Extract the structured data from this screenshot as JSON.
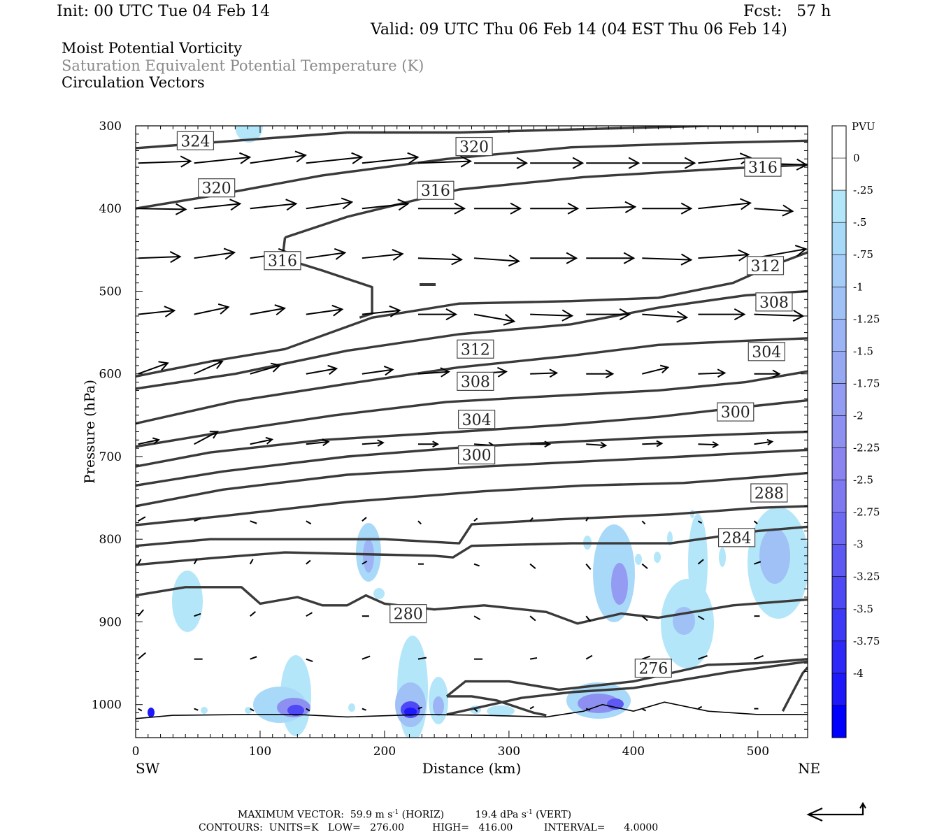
{
  "header": {
    "init": "Init: 00 UTC Tue 04 Feb 14",
    "fcst": "Fcst:   57 h",
    "valid": "Valid: 09 UTC Thu 06 Feb 14 (04 EST Thu 06 Feb 14)",
    "line1": "Moist Potential Vorticity",
    "line2": "Saturation Equivalent Potential Temperature (K)",
    "line3": "Circulation Vectors"
  },
  "footer": {
    "line1_a": "MAXIMUM VECTOR:  59.9 m s",
    "line1_b": " (HORIZ)          19.4 dPa s",
    "line1_c": " (VERT)",
    "sup": "-1",
    "line2": "CONTOURS:  UNITS=K   LOW=   276.00         HIGH=   416.00          INTERVAL=      4.0000"
  },
  "chart_data": {
    "type": "cross-section",
    "xlabel": "Distance (km)",
    "ylabel": "Pressure (hPa)",
    "x_ends": [
      "SW",
      "NE"
    ],
    "xlim": [
      0,
      540
    ],
    "ylim": [
      1040,
      300
    ],
    "x_ticks": [
      0,
      100,
      200,
      300,
      400,
      500
    ],
    "y_ticks": [
      300,
      400,
      500,
      600,
      700,
      800,
      900,
      1000
    ],
    "colorbar": {
      "title": "PVU",
      "labels": [
        "0",
        "-.25",
        "-.5",
        "-.75",
        "-1",
        "-1.25",
        "-1.5",
        "-1.75",
        "-2",
        "-2.25",
        "-2.5",
        "-2.75",
        "-3",
        "-3.25",
        "-3.5",
        "-3.75",
        "-4"
      ],
      "colors": [
        "#ffffff",
        "#ffffff",
        "#b4e6fa",
        "#a9d9f9",
        "#a5cdf7",
        "#a0c1f6",
        "#9cb4f5",
        "#97a8f3",
        "#939cf2",
        "#8e90f1",
        "#8a83f0",
        "#7e79f1",
        "#6e69f2",
        "#5e59f3",
        "#4e49f5",
        "#3e39f6",
        "#2e29f8",
        "#1e19fa",
        "#0000ff"
      ]
    },
    "contour_labels": [
      {
        "value": "324",
        "x": 48,
        "p": 318
      },
      {
        "value": "320",
        "x": 272,
        "p": 325
      },
      {
        "value": "316",
        "x": 504,
        "p": 350
      },
      {
        "value": "320",
        "x": 65,
        "p": 375
      },
      {
        "value": "316",
        "x": 241,
        "p": 378
      },
      {
        "value": "316",
        "x": 118,
        "p": 463
      },
      {
        "value": "312",
        "x": 506,
        "p": 469
      },
      {
        "value": "308",
        "x": 513,
        "p": 513
      },
      {
        "value": "312",
        "x": 273,
        "p": 570
      },
      {
        "value": "304",
        "x": 507,
        "p": 573
      },
      {
        "value": "308",
        "x": 273,
        "p": 609
      },
      {
        "value": "304",
        "x": 274,
        "p": 655
      },
      {
        "value": "300",
        "x": 482,
        "p": 646
      },
      {
        "value": "300",
        "x": 274,
        "p": 698
      },
      {
        "value": "288",
        "x": 509,
        "p": 744
      },
      {
        "value": "284",
        "x": 483,
        "p": 798
      },
      {
        "value": "280",
        "x": 219,
        "p": 890
      },
      {
        "value": "276",
        "x": 416,
        "p": 956
      }
    ]
  }
}
